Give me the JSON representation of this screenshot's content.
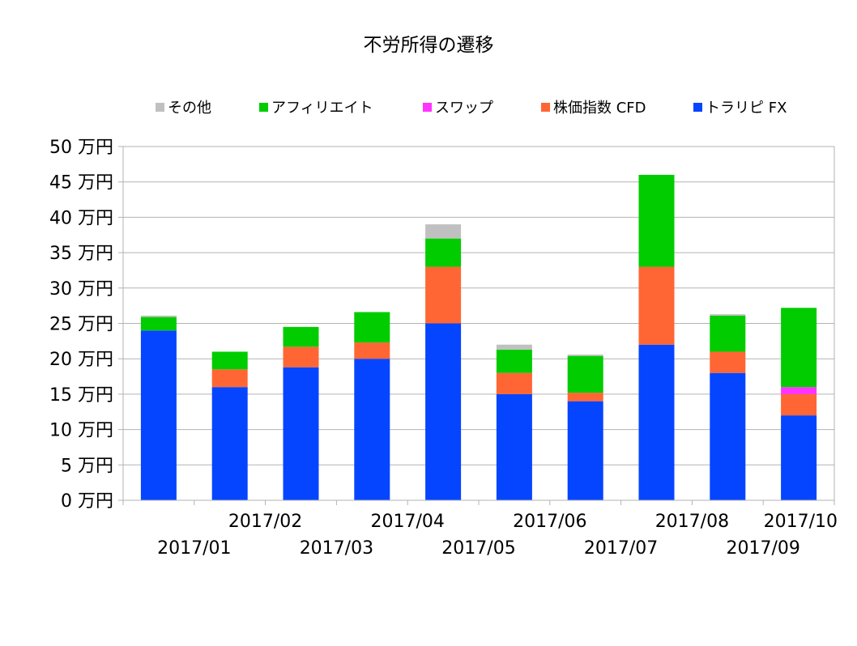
{
  "chart_data": {
    "type": "bar",
    "stacked": true,
    "title": "不労所得の遷移",
    "xlabel": "",
    "ylabel": "",
    "categories": [
      "2017/01",
      "2017/02",
      "2017/03",
      "2017/04",
      "2017/05",
      "2017/06",
      "2017/07",
      "2017/08",
      "2017/09",
      "2017/10"
    ],
    "ylim": [
      0,
      50
    ],
    "yticks": [
      0,
      5,
      10,
      15,
      20,
      25,
      30,
      35,
      40,
      45,
      50
    ],
    "ytick_suffix": " 万円",
    "grid": true,
    "legend_position": "top",
    "series": [
      {
        "name": "トラリピ FX",
        "color": "#0645ff",
        "values": [
          24,
          16,
          18.8,
          20,
          25,
          15,
          14,
          22,
          18,
          12
        ]
      },
      {
        "name": "株価指数 CFD",
        "color": "#ff6633",
        "values": [
          0,
          2.5,
          2.9,
          2.3,
          8,
          3,
          1.2,
          11,
          3,
          3
        ]
      },
      {
        "name": "スワップ",
        "color": "#ff33ff",
        "values": [
          0,
          0,
          0,
          0,
          0,
          0,
          0,
          0,
          0,
          1
        ]
      },
      {
        "name": "アフィリエイト",
        "color": "#00cc00",
        "values": [
          1.9,
          2.5,
          2.8,
          4.3,
          4,
          3.3,
          5.2,
          13,
          5.1,
          11.2
        ]
      },
      {
        "name": "その他",
        "color": "#c0c0c0",
        "values": [
          0.2,
          0,
          0,
          0,
          2,
          0.7,
          0.2,
          0,
          0.2,
          0
        ]
      }
    ],
    "legend_order": [
      "その他",
      "アフィリエイト",
      "スワップ",
      "株価指数 CFD",
      "トラリピ FX"
    ]
  }
}
